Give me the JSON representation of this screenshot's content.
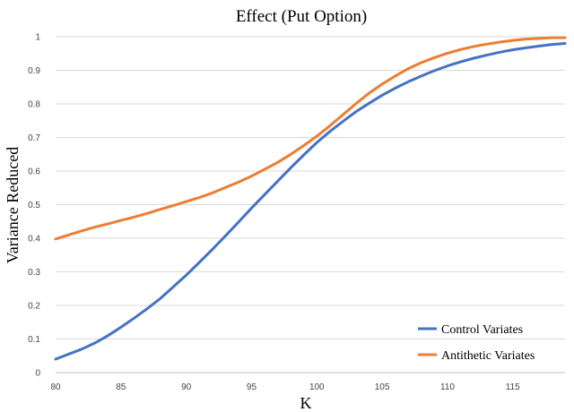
{
  "chart_data": {
    "type": "line",
    "title": "Effect (Put Option)",
    "xlabel": "K",
    "ylabel": "Variance Reduced",
    "xlim": [
      80,
      119
    ],
    "ylim": [
      0,
      1
    ],
    "x_ticks": [
      "80",
      "85",
      "90",
      "95",
      "100",
      "105",
      "110",
      "115"
    ],
    "y_ticks": [
      "0",
      "0.1",
      "0.2",
      "0.3",
      "0.4",
      "0.5",
      "0.6",
      "0.7",
      "0.8",
      "0.9",
      "1"
    ],
    "grid": "horizontal",
    "legend_position": "bottom-right",
    "x": [
      80,
      81,
      82,
      83,
      84,
      85,
      86,
      87,
      88,
      89,
      90,
      91,
      92,
      93,
      94,
      95,
      96,
      97,
      98,
      99,
      100,
      101,
      102,
      103,
      104,
      105,
      106,
      107,
      108,
      109,
      110,
      111,
      112,
      113,
      114,
      115,
      116,
      117,
      118,
      119
    ],
    "series": [
      {
        "name": "Control Variates",
        "color": "#4472c4",
        "values": [
          0.04,
          0.055,
          0.07,
          0.088,
          0.11,
          0.135,
          0.162,
          0.19,
          0.22,
          0.255,
          0.29,
          0.328,
          0.367,
          0.407,
          0.448,
          0.49,
          0.53,
          0.57,
          0.61,
          0.648,
          0.685,
          0.718,
          0.748,
          0.777,
          0.802,
          0.826,
          0.847,
          0.866,
          0.883,
          0.899,
          0.913,
          0.925,
          0.936,
          0.945,
          0.954,
          0.961,
          0.967,
          0.972,
          0.977,
          0.98
        ]
      },
      {
        "name": "Antithetic Variates",
        "color": "#ed7d31",
        "values": [
          0.398,
          0.41,
          0.422,
          0.433,
          0.443,
          0.453,
          0.463,
          0.474,
          0.486,
          0.497,
          0.509,
          0.521,
          0.535,
          0.551,
          0.567,
          0.585,
          0.605,
          0.626,
          0.65,
          0.676,
          0.704,
          0.735,
          0.768,
          0.801,
          0.832,
          0.859,
          0.883,
          0.905,
          0.923,
          0.938,
          0.951,
          0.962,
          0.971,
          0.978,
          0.984,
          0.989,
          0.993,
          0.995,
          0.997,
          0.997
        ]
      }
    ]
  }
}
